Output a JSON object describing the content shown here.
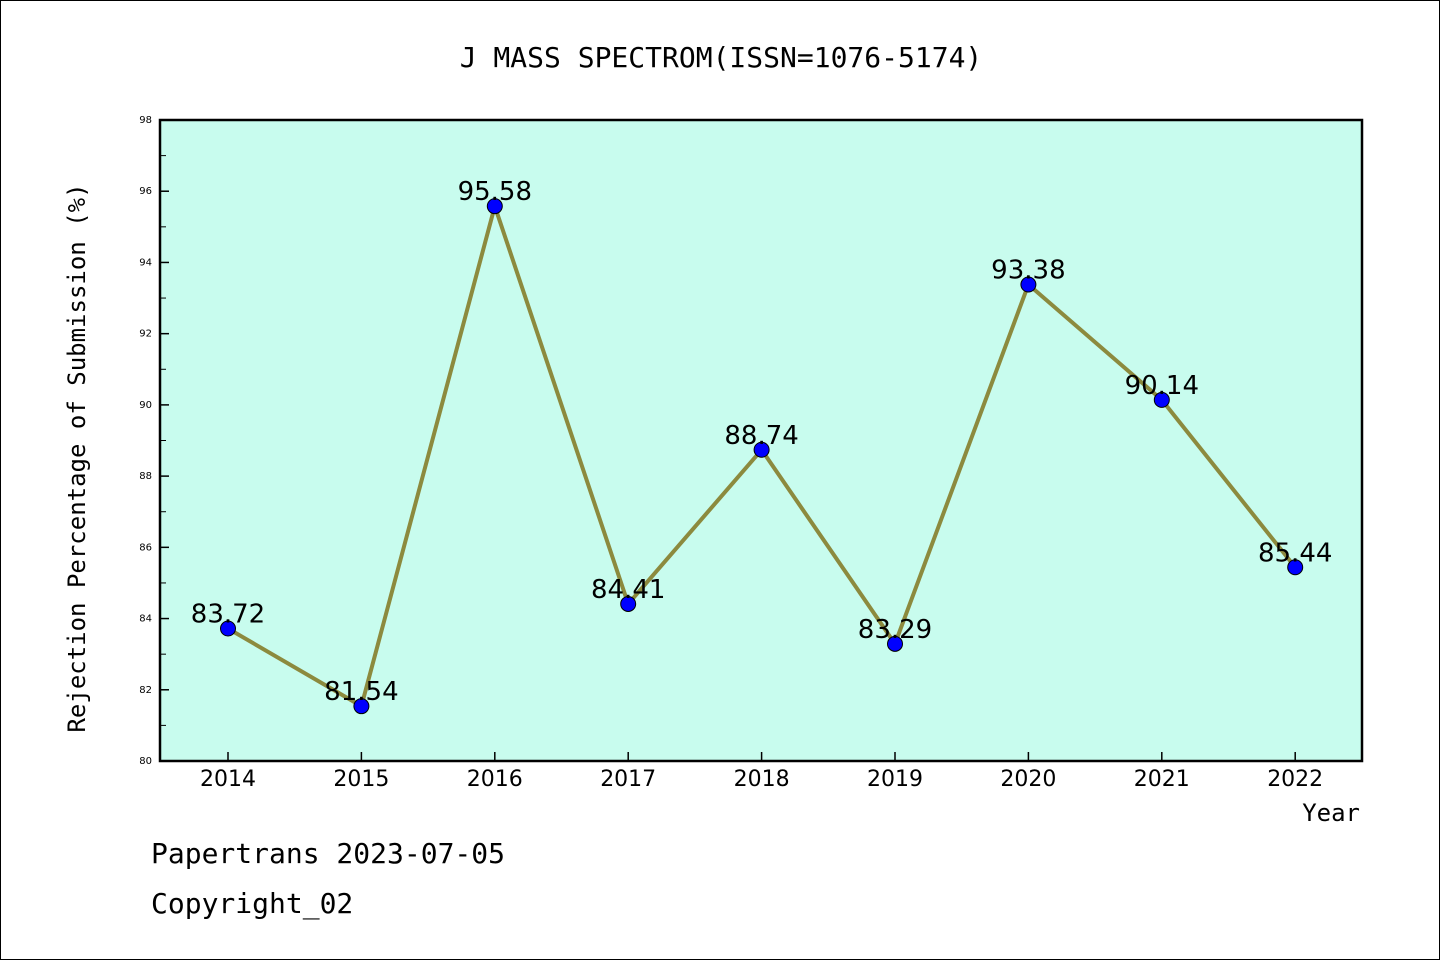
{
  "chart_data": {
    "type": "line",
    "title": "J MASS SPECTROM(ISSN=1076-5174)",
    "xlabel": "Year",
    "ylabel": "Rejection Percentage of Submission (%)",
    "categories": [
      "2014",
      "2015",
      "2016",
      "2017",
      "2018",
      "2019",
      "2020",
      "2021",
      "2022"
    ],
    "values": [
      83.72,
      81.54,
      95.58,
      84.41,
      88.74,
      83.29,
      93.38,
      90.14,
      85.44
    ],
    "data_labels": [
      "83.72",
      "81.54",
      "95.58",
      "84.41",
      "88.74",
      "83.29",
      "93.38",
      "90.14",
      "85.44"
    ],
    "ylim": [
      80,
      98
    ],
    "yticks": [
      "80",
      "82",
      "84",
      "86",
      "88",
      "90",
      "92",
      "94",
      "96",
      "98"
    ],
    "grid": false,
    "colors": {
      "plot_background": "#c8fcee",
      "line": "#8c8a3e",
      "marker": "#0000ff"
    }
  },
  "footer": {
    "line1": "Papertrans 2023-07-05",
    "line2": "Copyright_02"
  }
}
